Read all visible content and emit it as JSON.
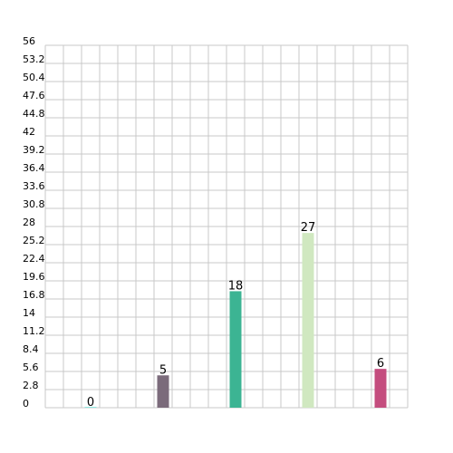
{
  "chart_data": {
    "type": "bar",
    "title": "",
    "xlabel": "",
    "ylabel": "",
    "ylim": [
      0,
      56
    ],
    "yticks": [
      "0",
      "2.8",
      "5.6",
      "8.4",
      "11.2",
      "14",
      "16.8",
      "19.6",
      "22.4",
      "25.2",
      "28",
      "30.8",
      "33.6",
      "36.4",
      "39.2",
      "42",
      "44.8",
      "47.6",
      "50.4",
      "53.2",
      "56"
    ],
    "grid": true,
    "legend": "none",
    "bars": [
      {
        "slot": 2.5,
        "value": 0,
        "label": "0",
        "color": "#8ee8e0"
      },
      {
        "slot": 6.5,
        "value": 5,
        "label": "5",
        "color": "#7b6b7b"
      },
      {
        "slot": 10.5,
        "value": 18,
        "label": "18",
        "color": "#3cb493"
      },
      {
        "slot": 14.5,
        "value": 27,
        "label": "27",
        "color": "#d0e8c0"
      },
      {
        "slot": 18.5,
        "value": 6,
        "label": "6",
        "color": "#c44d7e"
      }
    ],
    "slot_count": 20
  }
}
